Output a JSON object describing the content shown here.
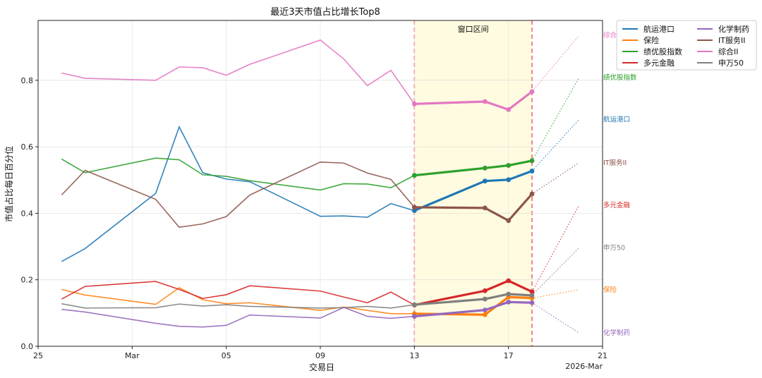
{
  "chart_data": {
    "type": "line",
    "title": "最近3天市值占比增长Top8",
    "xlabel": "交易日",
    "ylabel": "市值占比每日百分位",
    "ylim": [
      0,
      0.98
    ],
    "yticks": [
      "0.0",
      "0.2",
      "0.4",
      "0.6",
      "0.8"
    ],
    "xlim": [
      "2026-02-25",
      "2026-03-21"
    ],
    "xticks": [
      {
        "date": "2026-02-25",
        "label": "25"
      },
      {
        "date": "2026-03-01",
        "label": "Mar"
      },
      {
        "date": "2026-03-05",
        "label": "05"
      },
      {
        "date": "2026-03-09",
        "label": "09"
      },
      {
        "date": "2026-03-13",
        "label": "13"
      },
      {
        "date": "2026-03-17",
        "label": "17"
      },
      {
        "date": "2026-03-21",
        "label": "21"
      }
    ],
    "year_label": "2026-Mar",
    "window": {
      "start": "2026-03-13",
      "end": "2026-03-18",
      "label": "窗口区间",
      "fill": "#fffbe0",
      "line_color": "#ef6b6b"
    },
    "grid": true,
    "legend_position": "outside-right-top",
    "legend_columns": 2,
    "dates": [
      "2026-02-26",
      "2026-02-27",
      "2026-03-02",
      "2026-03-03",
      "2026-03-04",
      "2026-03-05",
      "2026-03-06",
      "2026-03-09",
      "2026-03-10",
      "2026-03-11",
      "2026-03-12",
      "2026-03-13",
      "2026-03-16",
      "2026-03-17",
      "2026-03-18"
    ],
    "projection_date": "2026-03-20",
    "series": [
      {
        "name": "航运港口",
        "color": "#1f77b4",
        "values": [
          0.255,
          0.294,
          0.46,
          0.66,
          0.522,
          0.503,
          0.495,
          0.391,
          0.392,
          0.388,
          0.429,
          0.408,
          0.497,
          0.501,
          0.527
        ],
        "projection": 0.682
      },
      {
        "name": "保险",
        "color": "#ff7f0e",
        "values": [
          0.171,
          0.154,
          0.126,
          0.176,
          0.14,
          0.128,
          0.131,
          0.108,
          0.118,
          0.108,
          0.098,
          0.098,
          0.095,
          0.148,
          0.145
        ],
        "projection": 0.17
      },
      {
        "name": "绩优股指数",
        "color": "#2ca02c",
        "values": [
          0.563,
          0.522,
          0.566,
          0.561,
          0.516,
          0.511,
          0.498,
          0.47,
          0.489,
          0.488,
          0.477,
          0.514,
          0.536,
          0.544,
          0.558
        ],
        "projection": 0.808
      },
      {
        "name": "多元金融",
        "color": "#d62728",
        "values": [
          0.142,
          0.18,
          0.195,
          0.171,
          0.144,
          0.155,
          0.182,
          0.166,
          0.148,
          0.131,
          0.163,
          0.124,
          0.167,
          0.197,
          0.164
        ],
        "projection": 0.424
      },
      {
        "name": "化学制药",
        "color": "#9467bd",
        "values": [
          0.111,
          0.103,
          0.069,
          0.06,
          0.058,
          0.063,
          0.094,
          0.085,
          0.117,
          0.09,
          0.084,
          0.09,
          0.109,
          0.133,
          0.131
        ],
        "projection": 0.04
      },
      {
        "name": "IT服务II",
        "color": "#8c564b",
        "values": [
          0.455,
          0.529,
          0.442,
          0.358,
          0.368,
          0.39,
          0.455,
          0.554,
          0.551,
          0.521,
          0.502,
          0.418,
          0.416,
          0.378,
          0.458
        ],
        "projection": 0.552
      },
      {
        "name": "综合II",
        "color": "#e377c2",
        "values": [
          0.822,
          0.806,
          0.8,
          0.84,
          0.838,
          0.815,
          0.848,
          0.921,
          0.864,
          0.784,
          0.83,
          0.729,
          0.736,
          0.712,
          0.766
        ],
        "projection": 0.935
      },
      {
        "name": "申万50",
        "color": "#7f7f7f",
        "values": [
          0.128,
          0.115,
          0.116,
          0.127,
          0.121,
          0.125,
          0.12,
          0.115,
          0.116,
          0.12,
          0.115,
          0.125,
          0.142,
          0.157,
          0.153
        ],
        "projection": 0.296
      }
    ],
    "end_labels": [
      {
        "text": "综合II",
        "color": "#e377c2",
        "y": 0.935
      },
      {
        "text": "绩优股指数",
        "color": "#2ca02c",
        "y": 0.808
      },
      {
        "text": "航运港口",
        "color": "#1f77b4",
        "y": 0.682
      },
      {
        "text": "IT服务II",
        "color": "#8c564b",
        "y": 0.552
      },
      {
        "text": "多元金融",
        "color": "#d62728",
        "y": 0.424
      },
      {
        "text": "申万50",
        "color": "#7f7f7f",
        "y": 0.296
      },
      {
        "text": "保险",
        "color": "#ff7f0e",
        "y": 0.17
      },
      {
        "text": "化学制药",
        "color": "#9467bd",
        "y": 0.04
      }
    ]
  }
}
